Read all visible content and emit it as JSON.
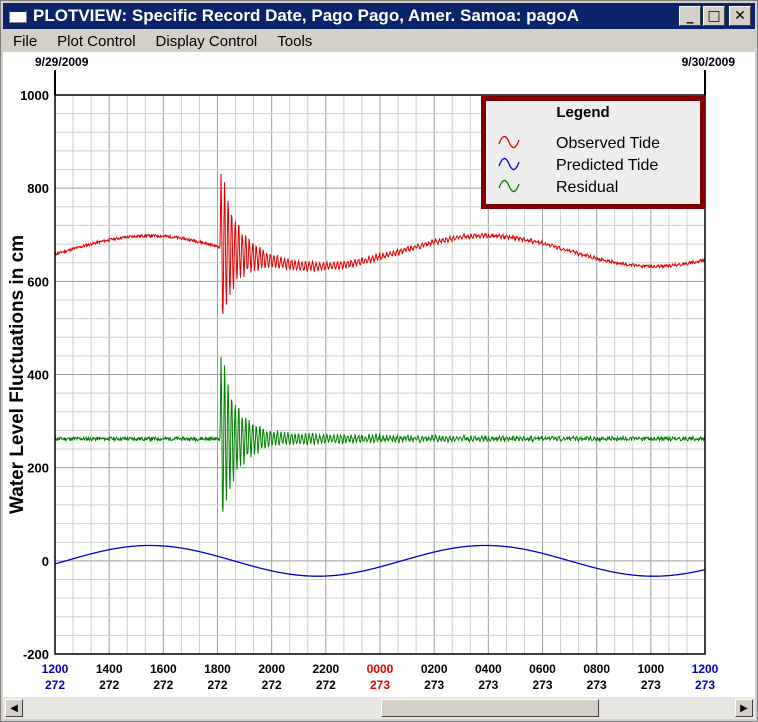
{
  "window": {
    "title": "PLOTVIEW: Specific Record Date, Pago Pago, Amer. Samoa: pagoA",
    "controls": {
      "minimize": "_",
      "maximize": "□",
      "close": "✕"
    }
  },
  "menu": [
    "File",
    "Plot Control",
    "Display Control",
    "Tools"
  ],
  "dates": {
    "start": "9/29/2009",
    "end": "9/30/2009"
  },
  "legend": {
    "title": "Legend",
    "items": [
      {
        "label": "Observed Tide",
        "color": "#e00000"
      },
      {
        "label": "Predicted Tide",
        "color": "#0000d0"
      },
      {
        "label": "Residual",
        "color": "#008000"
      }
    ]
  },
  "chart_data": {
    "type": "line",
    "ylabel": "Water Level Fluctuations in cm",
    "ylim": [
      -200,
      1000
    ],
    "yticks": [
      "1000",
      "800",
      "600",
      "400",
      "200",
      "0",
      "-200"
    ],
    "grid": true,
    "legend_position": "top-right",
    "xticks": [
      {
        "time": "1200",
        "day": "272",
        "color": "#0000c0"
      },
      {
        "time": "1400",
        "day": "272",
        "color": "#000000"
      },
      {
        "time": "1600",
        "day": "272",
        "color": "#000000"
      },
      {
        "time": "1800",
        "day": "272",
        "color": "#000000"
      },
      {
        "time": "2000",
        "day": "272",
        "color": "#000000"
      },
      {
        "time": "2200",
        "day": "272",
        "color": "#000000"
      },
      {
        "time": "0000",
        "day": "273",
        "color": "#e00000"
      },
      {
        "time": "0200",
        "day": "273",
        "color": "#000000"
      },
      {
        "time": "0400",
        "day": "273",
        "color": "#000000"
      },
      {
        "time": "0600",
        "day": "273",
        "color": "#000000"
      },
      {
        "time": "0800",
        "day": "273",
        "color": "#000000"
      },
      {
        "time": "1000",
        "day": "273",
        "color": "#000000"
      },
      {
        "time": "1200",
        "day": "273",
        "color": "#0000c0"
      }
    ],
    "x_hours": [
      0,
      24
    ],
    "series": [
      {
        "name": "Observed Tide",
        "color": "#e00000",
        "baseline": 665,
        "tsunami_onset_hour": 6.1,
        "max_amplitude": 180
      },
      {
        "name": "Predicted Tide",
        "color": "#0000d0",
        "mean": 0,
        "amplitude": 33,
        "period_hours": 12.4,
        "phase_peak_hour": 3.5
      },
      {
        "name": "Residual",
        "color": "#008000",
        "baseline": 262,
        "tsunami_onset_hour": 6.1,
        "max_amplitude": 200
      }
    ]
  }
}
